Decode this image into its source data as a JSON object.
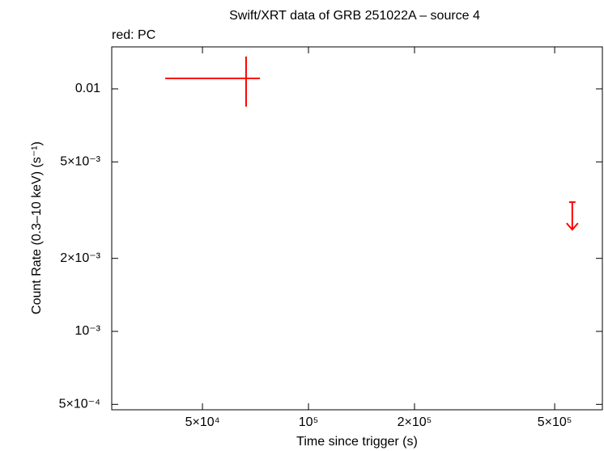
{
  "chart_data": {
    "type": "scatter",
    "title": "Swift/XRT data of GRB 251022A – source 4",
    "subtitle": "red: PC",
    "xlabel": "Time since trigger (s)",
    "ylabel": "Count Rate (0.3–10 keV) (s⁻¹)",
    "xscale": "log",
    "yscale": "log",
    "xlim": [
      27630,
      683000
    ],
    "ylim": [
      0.000475,
      0.0149
    ],
    "xticks": [
      {
        "value": 50000,
        "label": "5×10⁴"
      },
      {
        "value": 100000,
        "label": "10⁵"
      },
      {
        "value": 200000,
        "label": "2×10⁵"
      },
      {
        "value": 500000,
        "label": "5×10⁵"
      }
    ],
    "yticks": [
      {
        "value": 0.0005,
        "label": "5×10⁻⁴"
      },
      {
        "value": 0.001,
        "label": "10⁻³"
      },
      {
        "value": 0.002,
        "label": "2×10⁻³"
      },
      {
        "value": 0.005,
        "label": "5×10⁻³"
      },
      0.01
    ],
    "series": [
      {
        "color": "#ff0000",
        "x": [
          66500
        ],
        "x_low": [
          39200
        ],
        "x_high": [
          72800
        ],
        "values": [
          0.01105
        ],
        "y_low": [
          0.00845
        ],
        "y_high": [
          0.0136
        ]
      }
    ],
    "upper_limits": [
      {
        "color": "#ff0000",
        "x": [
          561000
        ],
        "values": [
          0.00341
        ]
      }
    ]
  }
}
